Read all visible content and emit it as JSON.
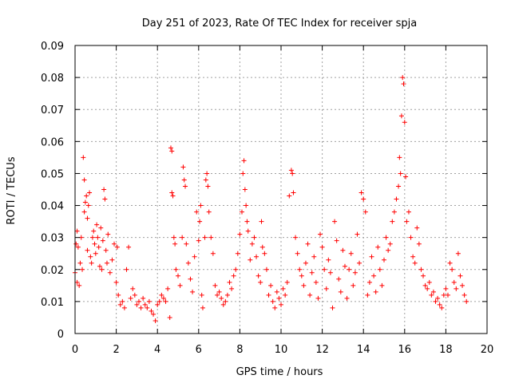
{
  "chart_data": {
    "type": "scatter",
    "title": "Day 251 of 2023, Rate Of TEC Index for receiver spja",
    "xlabel": "GPS time / hours",
    "ylabel": "ROTI / TECUs",
    "xlim": [
      0,
      20
    ],
    "ylim": [
      0,
      0.09
    ],
    "x_ticks": [
      "0",
      "2",
      "4",
      "6",
      "8",
      "10",
      "12",
      "14",
      "16",
      "18",
      "20"
    ],
    "y_ticks": [
      "0",
      "0.01",
      "0.02",
      "0.03",
      "0.04",
      "0.05",
      "0.06",
      "0.07",
      "0.08",
      "0.09"
    ],
    "grid": true,
    "marker": "+",
    "marker_color": "#ff0000",
    "series": [
      {
        "name": "ROTI",
        "points": [
          [
            0.0,
            0.019
          ],
          [
            0.05,
            0.028
          ],
          [
            0.1,
            0.032
          ],
          [
            0.1,
            0.016
          ],
          [
            0.15,
            0.027
          ],
          [
            0.2,
            0.015
          ],
          [
            0.25,
            0.022
          ],
          [
            0.3,
            0.03
          ],
          [
            0.35,
            0.02
          ],
          [
            0.4,
            0.055
          ],
          [
            0.45,
            0.048
          ],
          [
            0.45,
            0.038
          ],
          [
            0.5,
            0.041
          ],
          [
            0.55,
            0.043
          ],
          [
            0.6,
            0.036
          ],
          [
            0.6,
            0.026
          ],
          [
            0.65,
            0.04
          ],
          [
            0.7,
            0.044
          ],
          [
            0.75,
            0.024
          ],
          [
            0.8,
            0.022
          ],
          [
            0.85,
            0.03
          ],
          [
            0.9,
            0.032
          ],
          [
            0.95,
            0.028
          ],
          [
            1.0,
            0.025
          ],
          [
            1.05,
            0.034
          ],
          [
            1.1,
            0.03
          ],
          [
            1.15,
            0.027
          ],
          [
            1.2,
            0.021
          ],
          [
            1.25,
            0.033
          ],
          [
            1.3,
            0.02
          ],
          [
            1.35,
            0.029
          ],
          [
            1.4,
            0.045
          ],
          [
            1.45,
            0.042
          ],
          [
            1.5,
            0.026
          ],
          [
            1.55,
            0.022
          ],
          [
            1.6,
            0.031
          ],
          [
            1.7,
            0.019
          ],
          [
            1.8,
            0.023
          ],
          [
            1.9,
            0.028
          ],
          [
            2.0,
            0.016
          ],
          [
            2.05,
            0.027
          ],
          [
            2.1,
            0.012
          ],
          [
            2.2,
            0.009
          ],
          [
            2.3,
            0.01
          ],
          [
            2.4,
            0.008
          ],
          [
            2.5,
            0.02
          ],
          [
            2.6,
            0.027
          ],
          [
            2.7,
            0.011
          ],
          [
            2.8,
            0.014
          ],
          [
            2.9,
            0.012
          ],
          [
            3.0,
            0.009
          ],
          [
            3.1,
            0.01
          ],
          [
            3.2,
            0.008
          ],
          [
            3.3,
            0.011
          ],
          [
            3.4,
            0.009
          ],
          [
            3.5,
            0.008
          ],
          [
            3.6,
            0.01
          ],
          [
            3.7,
            0.007
          ],
          [
            3.8,
            0.006
          ],
          [
            3.9,
            0.004
          ],
          [
            4.0,
            0.009
          ],
          [
            4.1,
            0.01
          ],
          [
            4.2,
            0.012
          ],
          [
            4.3,
            0.011
          ],
          [
            4.4,
            0.01
          ],
          [
            4.5,
            0.014
          ],
          [
            4.6,
            0.005
          ],
          [
            4.65,
            0.058
          ],
          [
            4.7,
            0.057
          ],
          [
            4.7,
            0.044
          ],
          [
            4.75,
            0.043
          ],
          [
            4.8,
            0.03
          ],
          [
            4.85,
            0.028
          ],
          [
            4.9,
            0.02
          ],
          [
            5.0,
            0.018
          ],
          [
            5.1,
            0.015
          ],
          [
            5.2,
            0.03
          ],
          [
            5.25,
            0.052
          ],
          [
            5.3,
            0.048
          ],
          [
            5.35,
            0.046
          ],
          [
            5.4,
            0.028
          ],
          [
            5.5,
            0.022
          ],
          [
            5.6,
            0.017
          ],
          [
            5.7,
            0.013
          ],
          [
            5.8,
            0.024
          ],
          [
            5.9,
            0.038
          ],
          [
            6.0,
            0.029
          ],
          [
            6.05,
            0.035
          ],
          [
            6.1,
            0.04
          ],
          [
            6.15,
            0.012
          ],
          [
            6.2,
            0.008
          ],
          [
            6.3,
            0.03
          ],
          [
            6.35,
            0.048
          ],
          [
            6.4,
            0.05
          ],
          [
            6.45,
            0.046
          ],
          [
            6.5,
            0.038
          ],
          [
            6.6,
            0.03
          ],
          [
            6.7,
            0.025
          ],
          [
            6.8,
            0.015
          ],
          [
            6.9,
            0.012
          ],
          [
            7.0,
            0.013
          ],
          [
            7.1,
            0.011
          ],
          [
            7.2,
            0.009
          ],
          [
            7.3,
            0.01
          ],
          [
            7.4,
            0.012
          ],
          [
            7.5,
            0.016
          ],
          [
            7.6,
            0.014
          ],
          [
            7.7,
            0.018
          ],
          [
            7.8,
            0.02
          ],
          [
            7.9,
            0.025
          ],
          [
            8.0,
            0.031
          ],
          [
            8.1,
            0.038
          ],
          [
            8.15,
            0.05
          ],
          [
            8.2,
            0.054
          ],
          [
            8.25,
            0.045
          ],
          [
            8.3,
            0.04
          ],
          [
            8.35,
            0.035
          ],
          [
            8.4,
            0.032
          ],
          [
            8.5,
            0.023
          ],
          [
            8.6,
            0.028
          ],
          [
            8.7,
            0.03
          ],
          [
            8.8,
            0.024
          ],
          [
            8.9,
            0.018
          ],
          [
            9.0,
            0.016
          ],
          [
            9.05,
            0.035
          ],
          [
            9.1,
            0.027
          ],
          [
            9.2,
            0.025
          ],
          [
            9.3,
            0.02
          ],
          [
            9.4,
            0.012
          ],
          [
            9.5,
            0.015
          ],
          [
            9.6,
            0.01
          ],
          [
            9.7,
            0.008
          ],
          [
            9.8,
            0.013
          ],
          [
            9.9,
            0.011
          ],
          [
            10.0,
            0.009
          ],
          [
            10.1,
            0.014
          ],
          [
            10.2,
            0.012
          ],
          [
            10.3,
            0.016
          ],
          [
            10.4,
            0.043
          ],
          [
            10.5,
            0.051
          ],
          [
            10.55,
            0.05
          ],
          [
            10.6,
            0.044
          ],
          [
            10.7,
            0.03
          ],
          [
            10.8,
            0.025
          ],
          [
            10.9,
            0.02
          ],
          [
            11.0,
            0.018
          ],
          [
            11.1,
            0.015
          ],
          [
            11.2,
            0.022
          ],
          [
            11.3,
            0.028
          ],
          [
            11.4,
            0.012
          ],
          [
            11.5,
            0.019
          ],
          [
            11.6,
            0.024
          ],
          [
            11.7,
            0.016
          ],
          [
            11.8,
            0.011
          ],
          [
            11.9,
            0.031
          ],
          [
            12.0,
            0.027
          ],
          [
            12.1,
            0.02
          ],
          [
            12.2,
            0.014
          ],
          [
            12.3,
            0.023
          ],
          [
            12.4,
            0.019
          ],
          [
            12.5,
            0.008
          ],
          [
            12.6,
            0.035
          ],
          [
            12.7,
            0.029
          ],
          [
            12.8,
            0.017
          ],
          [
            12.9,
            0.013
          ],
          [
            13.0,
            0.026
          ],
          [
            13.1,
            0.021
          ],
          [
            13.2,
            0.011
          ],
          [
            13.3,
            0.02
          ],
          [
            13.4,
            0.025
          ],
          [
            13.5,
            0.015
          ],
          [
            13.6,
            0.019
          ],
          [
            13.7,
            0.031
          ],
          [
            13.8,
            0.022
          ],
          [
            13.9,
            0.044
          ],
          [
            14.0,
            0.042
          ],
          [
            14.1,
            0.038
          ],
          [
            14.2,
            0.012
          ],
          [
            14.3,
            0.016
          ],
          [
            14.4,
            0.024
          ],
          [
            14.5,
            0.018
          ],
          [
            14.6,
            0.013
          ],
          [
            14.7,
            0.027
          ],
          [
            14.8,
            0.02
          ],
          [
            14.9,
            0.015
          ],
          [
            15.0,
            0.023
          ],
          [
            15.1,
            0.03
          ],
          [
            15.2,
            0.026
          ],
          [
            15.3,
            0.028
          ],
          [
            15.4,
            0.035
          ],
          [
            15.5,
            0.038
          ],
          [
            15.6,
            0.042
          ],
          [
            15.7,
            0.046
          ],
          [
            15.75,
            0.055
          ],
          [
            15.8,
            0.05
          ],
          [
            15.85,
            0.068
          ],
          [
            15.9,
            0.08
          ],
          [
            15.95,
            0.078
          ],
          [
            16.0,
            0.066
          ],
          [
            16.05,
            0.049
          ],
          [
            16.1,
            0.035
          ],
          [
            16.2,
            0.038
          ],
          [
            16.3,
            0.03
          ],
          [
            16.4,
            0.024
          ],
          [
            16.5,
            0.022
          ],
          [
            16.6,
            0.033
          ],
          [
            16.7,
            0.028
          ],
          [
            16.8,
            0.02
          ],
          [
            16.9,
            0.018
          ],
          [
            17.0,
            0.015
          ],
          [
            17.1,
            0.014
          ],
          [
            17.2,
            0.016
          ],
          [
            17.3,
            0.012
          ],
          [
            17.4,
            0.013
          ],
          [
            17.5,
            0.01
          ],
          [
            17.6,
            0.011
          ],
          [
            17.7,
            0.009
          ],
          [
            17.8,
            0.008
          ],
          [
            17.9,
            0.012
          ],
          [
            18.0,
            0.014
          ],
          [
            18.1,
            0.012
          ],
          [
            18.2,
            0.022
          ],
          [
            18.3,
            0.02
          ],
          [
            18.4,
            0.016
          ],
          [
            18.5,
            0.014
          ],
          [
            18.6,
            0.025
          ],
          [
            18.7,
            0.018
          ],
          [
            18.8,
            0.015
          ],
          [
            18.9,
            0.012
          ],
          [
            19.0,
            0.01
          ]
        ]
      }
    ]
  }
}
